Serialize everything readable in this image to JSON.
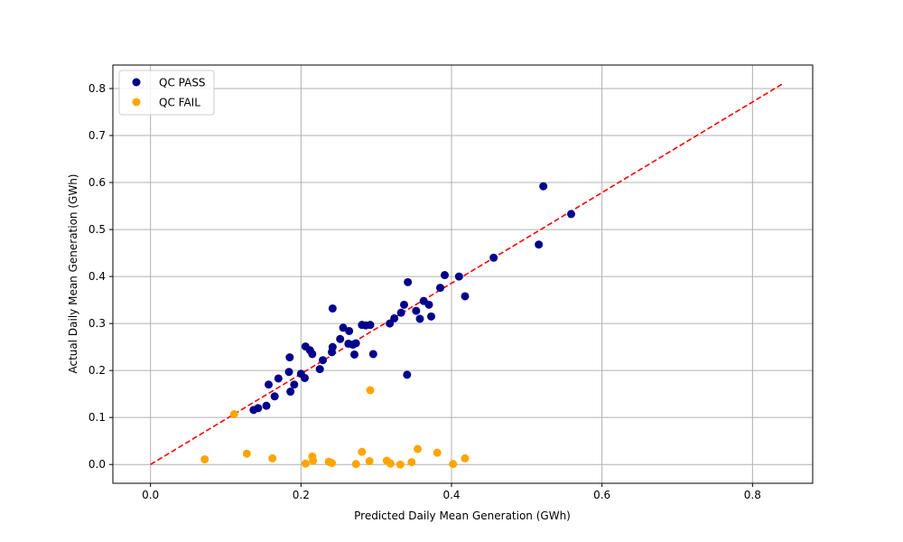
{
  "chart_data": {
    "type": "scatter",
    "title": "",
    "xlabel": "Predicted Daily Mean Generation (GWh)",
    "ylabel": "Actual Daily Mean Generation (GWh)",
    "xlim": [
      -0.05,
      0.88
    ],
    "ylim": [
      -0.04,
      0.85
    ],
    "xticks": [
      0.0,
      0.2,
      0.4,
      0.6,
      0.8
    ],
    "yticks": [
      0.0,
      0.1,
      0.2,
      0.3,
      0.4,
      0.5,
      0.6,
      0.7,
      0.8
    ],
    "xtick_labels": [
      "0.0",
      "0.2",
      "0.4",
      "0.6",
      "0.8"
    ],
    "ytick_labels": [
      "0.0",
      "0.1",
      "0.2",
      "0.3",
      "0.4",
      "0.5",
      "0.6",
      "0.7",
      "0.8"
    ],
    "grid": true,
    "legend_position": "top-left",
    "series": [
      {
        "name": "QC PASS",
        "color": "#00008b",
        "points": [
          [
            0.137,
            0.116
          ],
          [
            0.143,
            0.12
          ],
          [
            0.154,
            0.125
          ],
          [
            0.157,
            0.17
          ],
          [
            0.165,
            0.145
          ],
          [
            0.17,
            0.183
          ],
          [
            0.184,
            0.197
          ],
          [
            0.185,
            0.228
          ],
          [
            0.186,
            0.155
          ],
          [
            0.191,
            0.17
          ],
          [
            0.2,
            0.193
          ],
          [
            0.205,
            0.184
          ],
          [
            0.206,
            0.251
          ],
          [
            0.212,
            0.243
          ],
          [
            0.215,
            0.235
          ],
          [
            0.225,
            0.203
          ],
          [
            0.229,
            0.222
          ],
          [
            0.241,
            0.239
          ],
          [
            0.242,
            0.25
          ],
          [
            0.242,
            0.332
          ],
          [
            0.252,
            0.267
          ],
          [
            0.256,
            0.291
          ],
          [
            0.263,
            0.257
          ],
          [
            0.264,
            0.284
          ],
          [
            0.269,
            0.255
          ],
          [
            0.271,
            0.234
          ],
          [
            0.273,
            0.258
          ],
          [
            0.281,
            0.297
          ],
          [
            0.286,
            0.296
          ],
          [
            0.292,
            0.297
          ],
          [
            0.296,
            0.235
          ],
          [
            0.318,
            0.3
          ],
          [
            0.324,
            0.311
          ],
          [
            0.333,
            0.323
          ],
          [
            0.337,
            0.34
          ],
          [
            0.341,
            0.191
          ],
          [
            0.342,
            0.388
          ],
          [
            0.353,
            0.327
          ],
          [
            0.358,
            0.31
          ],
          [
            0.363,
            0.348
          ],
          [
            0.37,
            0.34
          ],
          [
            0.373,
            0.315
          ],
          [
            0.385,
            0.376
          ],
          [
            0.391,
            0.403
          ],
          [
            0.41,
            0.4
          ],
          [
            0.418,
            0.358
          ],
          [
            0.456,
            0.44
          ],
          [
            0.516,
            0.468
          ],
          [
            0.522,
            0.592
          ],
          [
            0.559,
            0.533
          ]
        ]
      },
      {
        "name": "QC FAIL",
        "color": "#ffa500",
        "points": [
          [
            0.072,
            0.011
          ],
          [
            0.111,
            0.107
          ],
          [
            0.128,
            0.023
          ],
          [
            0.162,
            0.013
          ],
          [
            0.206,
            0.002
          ],
          [
            0.215,
            0.017
          ],
          [
            0.216,
            0.008
          ],
          [
            0.237,
            0.006
          ],
          [
            0.241,
            0.003
          ],
          [
            0.273,
            0.001
          ],
          [
            0.281,
            0.027
          ],
          [
            0.291,
            0.007
          ],
          [
            0.292,
            0.158
          ],
          [
            0.314,
            0.008
          ],
          [
            0.319,
            0.002
          ],
          [
            0.332,
            0.0
          ],
          [
            0.347,
            0.005
          ],
          [
            0.355,
            0.033
          ],
          [
            0.381,
            0.025
          ],
          [
            0.402,
            0.001
          ],
          [
            0.418,
            0.013
          ]
        ]
      }
    ],
    "reference_line": {
      "color": "#ff0000",
      "style": "dashed",
      "points": [
        [
          0.0,
          0.0
        ],
        [
          0.84,
          0.81
        ]
      ]
    }
  }
}
